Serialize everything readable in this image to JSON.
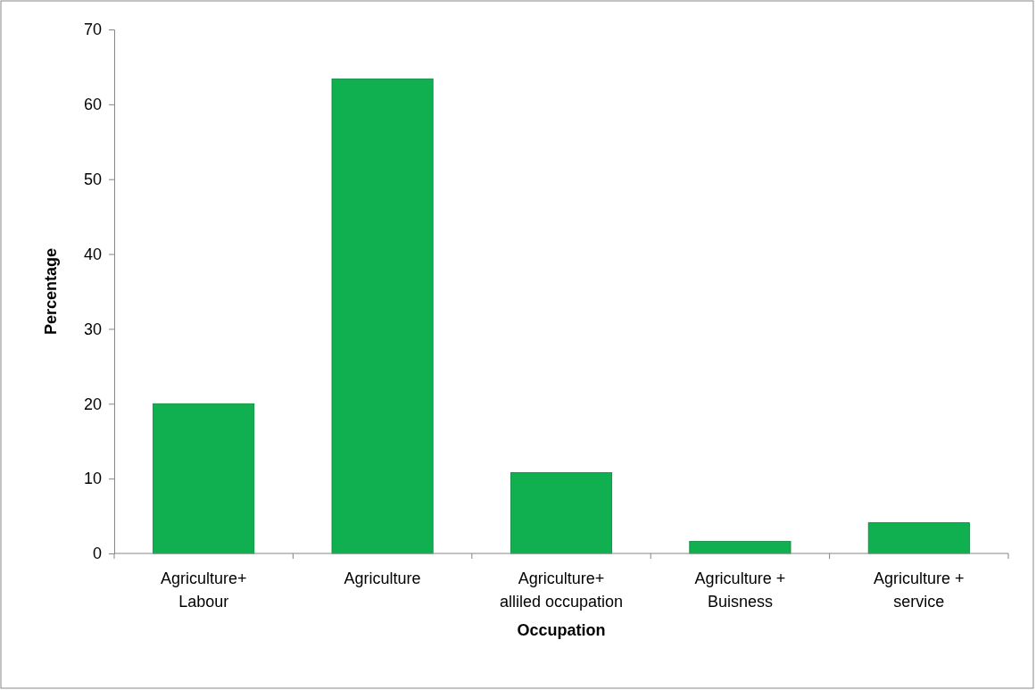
{
  "chart_data": {
    "type": "bar",
    "xlabel": "Occupation",
    "ylabel": "Percentage",
    "categories": [
      "Agriculture+ Labour",
      "Agriculture",
      "Agriculture+ alliled occupation",
      "Agriculture + Buisness",
      "Agriculture + service"
    ],
    "values": [
      20,
      63.4,
      10.8,
      1.6,
      4.1
    ],
    "color": "#10b050",
    "ylim": [
      0,
      70
    ],
    "yticks": [
      0,
      10,
      20,
      30,
      40,
      50,
      60,
      70
    ],
    "grid": false
  }
}
